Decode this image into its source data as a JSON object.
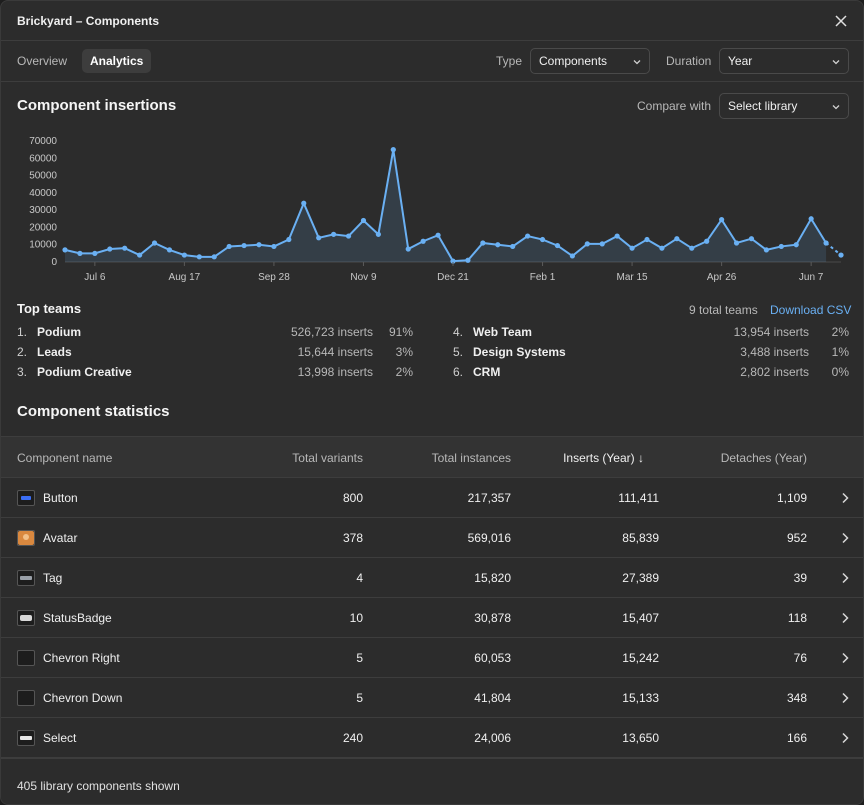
{
  "window": {
    "title": "Brickyard – Components"
  },
  "tabs": [
    {
      "label": "Overview",
      "active": false
    },
    {
      "label": "Analytics",
      "active": true
    }
  ],
  "filters": {
    "type_label": "Type",
    "type_value": "Components",
    "duration_label": "Duration",
    "duration_value": "Year"
  },
  "insertions": {
    "heading": "Component insertions",
    "compare_label": "Compare with",
    "compare_value": "Select library"
  },
  "chart_data": {
    "type": "area",
    "title": "Component insertions",
    "y_ticks": [
      0,
      10000,
      20000,
      30000,
      40000,
      50000,
      60000,
      70000
    ],
    "ylim": [
      0,
      70000
    ],
    "x_tick_labels": [
      "Jul 6",
      "Aug 17",
      "Sep 28",
      "Nov 9",
      "Dec 21",
      "Feb 1",
      "Mar 15",
      "Apr 26",
      "Jun 7"
    ],
    "x_tick_week_index": [
      2,
      8,
      14,
      20,
      26,
      32,
      38,
      44,
      50
    ],
    "values": [
      7000,
      5000,
      5000,
      7500,
      8000,
      4000,
      11000,
      7000,
      4000,
      3000,
      3000,
      9000,
      9500,
      10000,
      9000,
      13000,
      34000,
      14000,
      16000,
      15000,
      24000,
      16000,
      65000,
      7500,
      12000,
      15500,
      500,
      1000,
      11000,
      10000,
      9000,
      15000,
      13000,
      9500,
      3500,
      10500,
      10500,
      15000,
      8000,
      13000,
      8000,
      13500,
      8000,
      12000,
      24500,
      11000,
      13500,
      7000,
      9000,
      10000,
      25000,
      11000,
      4000
    ],
    "grid": false,
    "color": "#6ab0f3"
  },
  "top_teams": {
    "heading": "Top teams",
    "total": "9 total teams",
    "download": "Download CSV",
    "items": [
      {
        "rank": "1.",
        "name": "Podium",
        "inserts": "526,723 inserts",
        "pct": "91%"
      },
      {
        "rank": "2.",
        "name": "Leads",
        "inserts": "15,644 inserts",
        "pct": "3%"
      },
      {
        "rank": "3.",
        "name": "Podium Creative",
        "inserts": "13,998 inserts",
        "pct": "2%"
      },
      {
        "rank": "4.",
        "name": "Web Team",
        "inserts": "13,954 inserts",
        "pct": "2%"
      },
      {
        "rank": "5.",
        "name": "Design Systems",
        "inserts": "3,488 inserts",
        "pct": "1%"
      },
      {
        "rank": "6.",
        "name": "CRM",
        "inserts": "2,802 inserts",
        "pct": "0%"
      }
    ]
  },
  "stats": {
    "heading": "Component statistics",
    "columns": {
      "name": "Component name",
      "variants": "Total variants",
      "instances": "Total instances",
      "inserts": "Inserts (Year)",
      "detaches": "Detaches (Year)"
    },
    "rows": [
      {
        "name": "Button",
        "variants": "800",
        "instances": "217,357",
        "inserts": "111,411",
        "detaches": "1,109",
        "thumb": "button-thumb"
      },
      {
        "name": "Avatar",
        "variants": "378",
        "instances": "569,016",
        "inserts": "85,839",
        "detaches": "952",
        "thumb": "avatar-thumb"
      },
      {
        "name": "Tag",
        "variants": "4",
        "instances": "15,820",
        "inserts": "27,389",
        "detaches": "39",
        "thumb": "tag-thumb"
      },
      {
        "name": "StatusBadge",
        "variants": "10",
        "instances": "30,878",
        "inserts": "15,407",
        "detaches": "118",
        "thumb": "badge-thumb"
      },
      {
        "name": "Chevron Right",
        "variants": "5",
        "instances": "60,053",
        "inserts": "15,242",
        "detaches": "76",
        "thumb": "empty-thumb"
      },
      {
        "name": "Chevron Down",
        "variants": "5",
        "instances": "41,804",
        "inserts": "15,133",
        "detaches": "348",
        "thumb": "empty-thumb"
      },
      {
        "name": "Select",
        "variants": "240",
        "instances": "24,006",
        "inserts": "13,650",
        "detaches": "166",
        "thumb": "select-thumb"
      }
    ]
  },
  "footer": {
    "shown": "405 library components shown"
  }
}
